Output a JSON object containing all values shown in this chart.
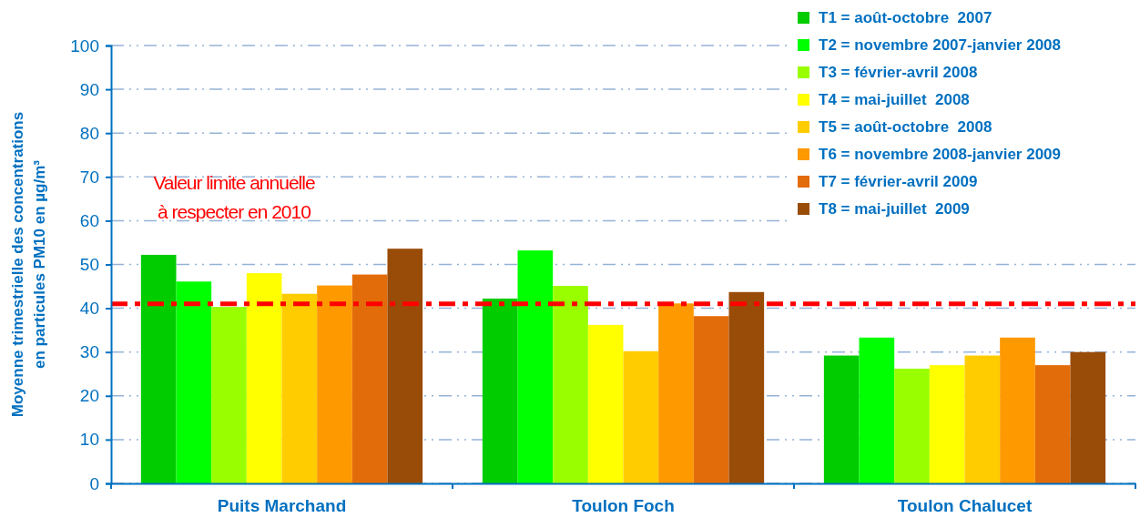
{
  "chart_data": {
    "type": "bar",
    "ylabel": "Moyenne trimestrielle des concentrations\nen particules  PM10 en  µg/m³",
    "categories": [
      "Puits Marchand",
      "Toulon Foch",
      "Toulon Chalucet"
    ],
    "series": [
      {
        "name": "T1 = août-octobre  2007",
        "color": "#00cc00",
        "values": [
          52.2,
          42.2,
          29.2
        ]
      },
      {
        "name": "T2 = novembre 2007-janvier 2008",
        "color": "#00ff00",
        "values": [
          46.1,
          53.2,
          33.3
        ]
      },
      {
        "name": "T3 = février-avril 2008",
        "color": "#99ff00",
        "values": [
          40.3,
          45.1,
          26.2
        ]
      },
      {
        "name": "T4 = mai-juillet  2008",
        "color": "#ffff00",
        "values": [
          48,
          36.2,
          27
        ]
      },
      {
        "name": "T5 = août-octobre  2008",
        "color": "#ffcc00",
        "values": [
          43.3,
          30.2,
          29.2
        ]
      },
      {
        "name": "T6 = novembre 2008-janvier 2009",
        "color": "#ff9900",
        "values": [
          45.2,
          41.1,
          33.3
        ]
      },
      {
        "name": "T7 = février-avril 2009",
        "color": "#e36c0a",
        "values": [
          47.7,
          38.2,
          27
        ]
      },
      {
        "name": "T8 = mai-juillet  2009",
        "color": "#994c08",
        "values": [
          53.6,
          43.7,
          30
        ]
      }
    ],
    "ylim": [
      0,
      100
    ],
    "yticks": [
      0,
      10,
      20,
      30,
      40,
      50,
      60,
      70,
      80,
      90,
      100
    ],
    "grid": "y",
    "legend": "top right",
    "ref_lines": [
      {
        "axis": "y",
        "value": 41,
        "label": "Valeur limite annuelle\nà respecter en 2010",
        "color": "#ff0000",
        "line_style": "dashed"
      }
    ]
  }
}
